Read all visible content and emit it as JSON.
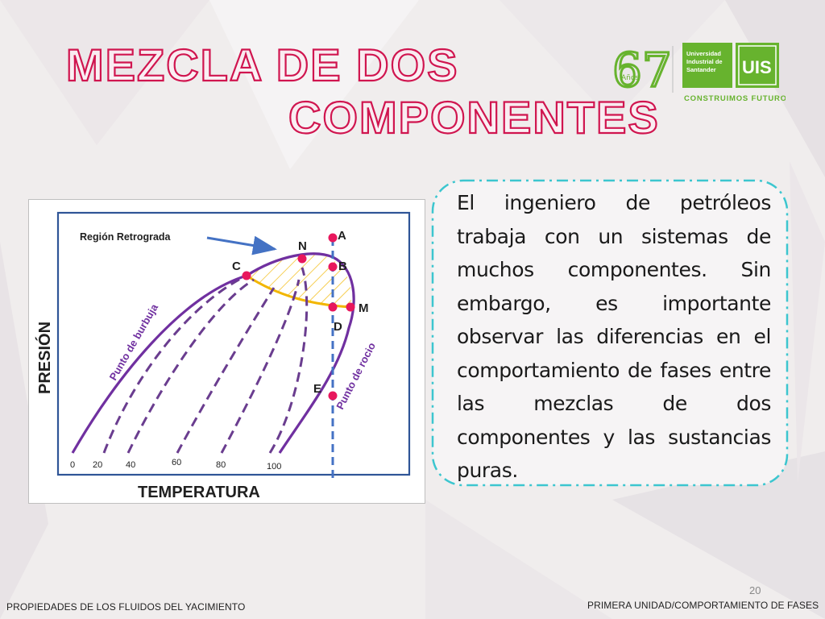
{
  "slide": {
    "title_line1": "MEZCLA DE DOS",
    "title_line2": "COMPONENTES",
    "page_number": "20",
    "footer_left": "PROPIEDADES DE LOS FLUIDOS DEL YACIMIENTO",
    "footer_right": "PRIMERA UNIDAD/COMPORTAMIENTO DE FASES",
    "body_text": "El ingeniero de petróleos trabaja con un sistemas de muchos componentes. Sin embargo, es importante observar las diferencias en el comportamiento de fases entre las mezclas de dos componentes y las sustancias puras."
  },
  "logo": {
    "anniversary_number": "67",
    "anniversary_word": "Años",
    "university_line1": "Universidad",
    "university_line2": "Industrial de",
    "university_line3": "Santander",
    "acronym": "UIS",
    "slogan": "CONSTRUIMOS FUTURO",
    "brand_color": "#67b32e"
  },
  "diagram": {
    "y_axis_label": "PRESIÓN",
    "x_axis_label": "TEMPERATURA",
    "retrograde_label": "Región Retrograda",
    "bubble_label": "Punto de burbuja",
    "dew_label": "Punto de rocio",
    "curve_values": [
      "0",
      "20",
      "40",
      "60",
      "80",
      "100"
    ],
    "points": {
      "A": "A",
      "B": "B",
      "C": "C",
      "D": "D",
      "E": "E",
      "M": "M",
      "N": "N"
    },
    "colors": {
      "envelope": "#7030a0",
      "dashed_lines": "#6a3d8f",
      "isothermal": "#4472c4",
      "retrograde_fill": "#f2b600",
      "points": "#e8175d",
      "arrow": "#4472c4",
      "title": "#e8175d"
    }
  }
}
